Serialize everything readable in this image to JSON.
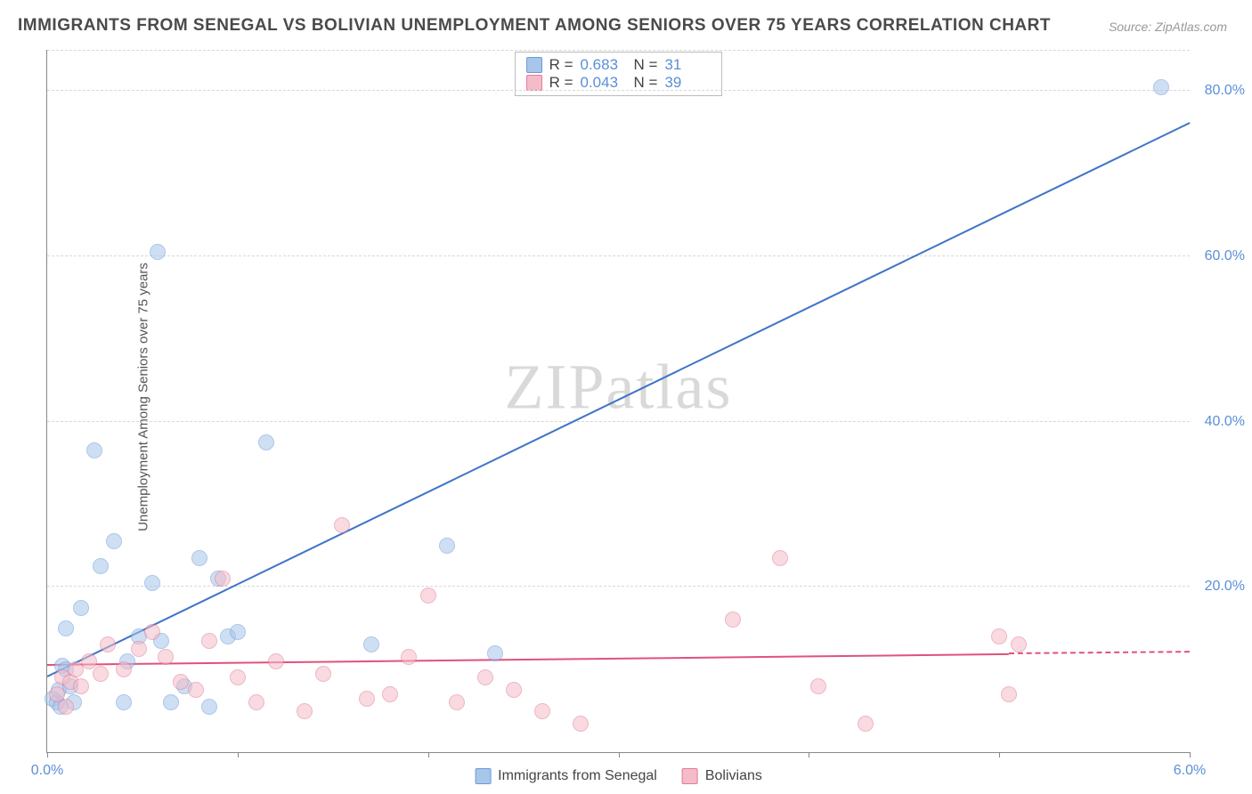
{
  "title": "IMMIGRANTS FROM SENEGAL VS BOLIVIAN UNEMPLOYMENT AMONG SENIORS OVER 75 YEARS CORRELATION CHART",
  "source": "Source: ZipAtlas.com",
  "ylabel": "Unemployment Among Seniors over 75 years",
  "watermark": "ZIPatlas",
  "chart": {
    "type": "scatter",
    "xlim": [
      0.0,
      6.0
    ],
    "ylim": [
      0.0,
      85.0
    ],
    "y_ticks": [
      20.0,
      40.0,
      60.0,
      80.0
    ],
    "y_tick_labels": [
      "20.0%",
      "40.0%",
      "60.0%",
      "80.0%"
    ],
    "x_ticks": [
      0.0,
      1.0,
      2.0,
      3.0,
      4.0,
      5.0,
      6.0
    ],
    "x_tick_labels_shown": {
      "0.0": "0.0%",
      "6.0": "6.0%"
    },
    "background_color": "#ffffff",
    "grid_color": "#d8d8d8",
    "axis_color": "#888888",
    "tick_label_color": "#5b8fd6",
    "marker_radius": 9,
    "marker_opacity": 0.55,
    "series": [
      {
        "name": "Immigrants from Senegal",
        "color_fill": "#a8c5ea",
        "color_stroke": "#6a9bd8",
        "R": 0.683,
        "N": 31,
        "trend": {
          "x1": 0.0,
          "y1": 9.0,
          "x2": 6.0,
          "y2": 76.0,
          "color": "#3d74c7",
          "width": 2,
          "dash_after_x": null
        },
        "points": [
          [
            0.03,
            6.5
          ],
          [
            0.05,
            6.0
          ],
          [
            0.06,
            7.5
          ],
          [
            0.07,
            5.5
          ],
          [
            0.08,
            10.5
          ],
          [
            0.1,
            10.0
          ],
          [
            0.12,
            8.0
          ],
          [
            0.14,
            6.0
          ],
          [
            0.1,
            15.0
          ],
          [
            0.18,
            17.5
          ],
          [
            0.25,
            36.5
          ],
          [
            0.28,
            22.5
          ],
          [
            0.35,
            25.5
          ],
          [
            0.4,
            6.0
          ],
          [
            0.42,
            11.0
          ],
          [
            0.48,
            14.0
          ],
          [
            0.55,
            20.5
          ],
          [
            0.58,
            60.5
          ],
          [
            0.6,
            13.5
          ],
          [
            0.65,
            6.0
          ],
          [
            0.72,
            8.0
          ],
          [
            0.8,
            23.5
          ],
          [
            0.85,
            5.5
          ],
          [
            0.9,
            21.0
          ],
          [
            0.95,
            14.0
          ],
          [
            1.0,
            14.5
          ],
          [
            1.15,
            37.5
          ],
          [
            1.7,
            13.0
          ],
          [
            2.1,
            25.0
          ],
          [
            2.35,
            12.0
          ],
          [
            5.85,
            80.5
          ]
        ]
      },
      {
        "name": "Bolivians",
        "color_fill": "#f4bcc8",
        "color_stroke": "#e47a97",
        "R": 0.043,
        "N": 39,
        "trend": {
          "x1": 0.0,
          "y1": 10.5,
          "x2": 5.05,
          "y2": 11.8,
          "color": "#e0527b",
          "width": 2,
          "dash_after_x": 5.05,
          "dash_to_x": 6.0,
          "dash_y": 12.0
        },
        "points": [
          [
            0.05,
            7.0
          ],
          [
            0.08,
            9.0
          ],
          [
            0.1,
            5.5
          ],
          [
            0.12,
            8.5
          ],
          [
            0.15,
            10.0
          ],
          [
            0.18,
            8.0
          ],
          [
            0.22,
            11.0
          ],
          [
            0.28,
            9.5
          ],
          [
            0.32,
            13.0
          ],
          [
            0.4,
            10.0
          ],
          [
            0.48,
            12.5
          ],
          [
            0.55,
            14.5
          ],
          [
            0.62,
            11.5
          ],
          [
            0.7,
            8.5
          ],
          [
            0.78,
            7.5
          ],
          [
            0.85,
            13.5
          ],
          [
            0.92,
            21.0
          ],
          [
            1.0,
            9.0
          ],
          [
            1.1,
            6.0
          ],
          [
            1.2,
            11.0
          ],
          [
            1.35,
            5.0
          ],
          [
            1.45,
            9.5
          ],
          [
            1.55,
            27.5
          ],
          [
            1.68,
            6.5
          ],
          [
            1.8,
            7.0
          ],
          [
            1.9,
            11.5
          ],
          [
            2.0,
            19.0
          ],
          [
            2.15,
            6.0
          ],
          [
            2.3,
            9.0
          ],
          [
            2.45,
            7.5
          ],
          [
            2.6,
            5.0
          ],
          [
            2.8,
            3.5
          ],
          [
            3.6,
            16.0
          ],
          [
            3.85,
            23.5
          ],
          [
            4.05,
            8.0
          ],
          [
            4.3,
            3.5
          ],
          [
            5.0,
            14.0
          ],
          [
            5.05,
            7.0
          ],
          [
            5.1,
            13.0
          ]
        ]
      }
    ]
  },
  "legend_top": {
    "stat_labels": {
      "r": "R  =",
      "n": "N  ="
    }
  },
  "legend_bottom": {
    "items": [
      "Immigrants from Senegal",
      "Bolivians"
    ]
  }
}
